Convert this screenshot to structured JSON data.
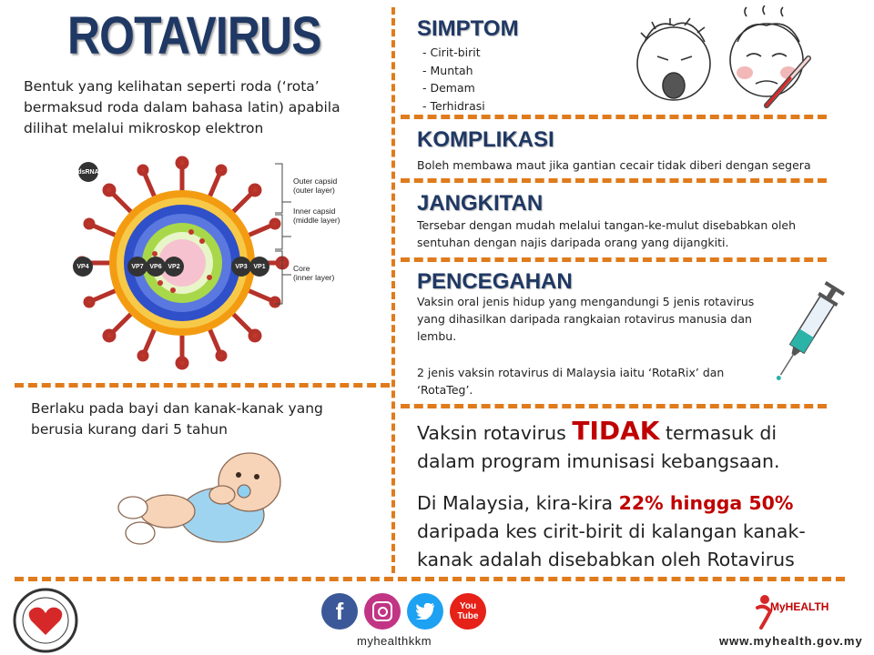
{
  "title": "ROTAVIRUS",
  "intro": "Bentuk yang kelihatan seperti roda (‘rota’ bermaksud roda dalam bahasa latin) apabila dilihat melalui mikroskop elektron",
  "virus_labels": {
    "dsrna": "dsRNA",
    "outer_capsid": "Outer capsid",
    "outer_layer": "(outer layer)",
    "inner_capsid": "Inner capsid",
    "middle_layer": "(middle layer)",
    "core": "Core",
    "inner_layer": "(inner layer)",
    "vp4": "VP4",
    "vp7": "VP7",
    "vp6": "VP6",
    "vp2": "VP2",
    "vp3": "VP3",
    "vp1": "VP1"
  },
  "simptom": {
    "heading": "SIMPTOM",
    "items": [
      "- Cirit-birit",
      "- Muntah",
      "- Demam",
      "- Terhidrasi"
    ]
  },
  "komplikasi": {
    "heading": "KOMPLIKASI",
    "text": "Boleh membawa maut jika gantian cecair tidak diberi dengan segera"
  },
  "jangkitan": {
    "heading": "JANGKITAN",
    "text": "Tersebar dengan mudah melalui tangan-ke-mulut disebabkan oleh sentuhan dengan najis daripada orang yang dijangkiti."
  },
  "pencegahan": {
    "heading": "PENCEGAHAN",
    "text1": "Vaksin oral jenis hidup yang mengandungi 5 jenis rotavirus yang dihasilkan daripada rangkaian rotavirus manusia dan lembu.",
    "text2": "2 jenis vaksin rotavirus di Malaysia iaitu ‘RotaRix’ dan ‘RotaTeg’."
  },
  "vaksin": {
    "pre": "Vaksin rotavirus",
    "highlight": "TIDAK",
    "post": "termasuk di dalam program imunisasi kebangsaan."
  },
  "malaysia": {
    "pre": "Di Malaysia, kira-kira",
    "highlight": "22% hingga 50%",
    "post": "daripada kes cirit-birit di kalangan kanak-kanak adalah disebabkan oleh Rotavirus"
  },
  "baby_text": "Berlaku pada bayi dan kanak-kanak yang berusia kurang dari 5 tahun",
  "footer": {
    "handle": "myhealthkkm",
    "url": "www.myhealth.gov.my",
    "myhealth_logo": "MyHEALTH",
    "youtube_label": "You Tube",
    "colors": {
      "facebook": "#3b5998",
      "instagram": "#c13584",
      "twitter": "#1da1f2",
      "youtube": "#e62117"
    }
  },
  "colors": {
    "title": "#1f3864",
    "accent": "#e07b1c",
    "highlight": "#c00000"
  }
}
